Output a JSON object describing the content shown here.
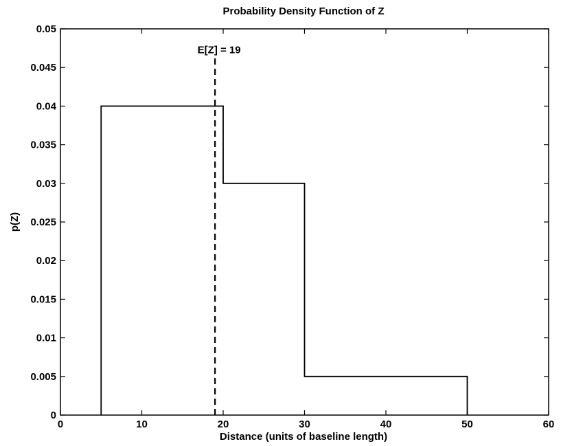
{
  "chart_data": {
    "type": "line",
    "title": "Probability Density Function of Z",
    "xlabel": "Distance (units of baseline length)",
    "ylabel": "p(Z)",
    "xlim": [
      0,
      60
    ],
    "ylim": [
      0,
      0.05
    ],
    "xticks": [
      0,
      10,
      20,
      30,
      40,
      50,
      60
    ],
    "xtick_labels": [
      "0",
      "10",
      "20",
      "30",
      "40",
      "50",
      "60"
    ],
    "yticks": [
      0,
      0.005,
      0.01,
      0.015,
      0.02,
      0.025,
      0.03,
      0.035,
      0.04,
      0.045,
      0.05
    ],
    "ytick_labels": [
      "0",
      "0.005",
      "0.01",
      "0.015",
      "0.02",
      "0.025",
      "0.03",
      "0.035",
      "0.04",
      "0.045",
      "0.05"
    ],
    "grid": false,
    "series": [
      {
        "style": "solid",
        "color": "#000000",
        "x": [
          5,
          5,
          20,
          20,
          30,
          30,
          50,
          50
        ],
        "y": [
          0,
          0.04,
          0.04,
          0.03,
          0.03,
          0.005,
          0.005,
          0
        ]
      }
    ],
    "vlines": [
      {
        "x": 19,
        "y_range": [
          0,
          0.0465
        ],
        "style": "dashed",
        "color": "#000000"
      }
    ],
    "annotations": [
      {
        "text": "E[Z] = 19",
        "x": 19,
        "y": 0.0465
      }
    ]
  }
}
